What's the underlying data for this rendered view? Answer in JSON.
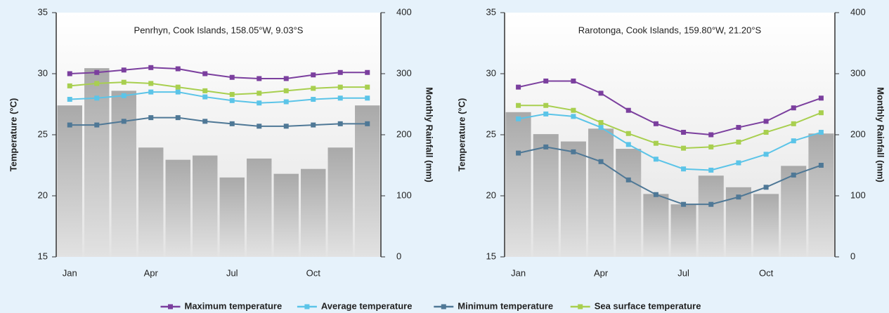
{
  "chart_data": [
    {
      "type": "combo",
      "title": "Penrhyn, Cook Islands, 158.05°W, 9.03°S",
      "ylabel": "Temperature (°C)",
      "y2label": "Monthly Rainfall (mm)",
      "categories": [
        "Jan",
        null,
        null,
        "Apr",
        null,
        null,
        "Jul",
        null,
        null,
        "Oct",
        null,
        null
      ],
      "ylim": [
        15,
        35
      ],
      "yticks": [
        15,
        20,
        25,
        30,
        35
      ],
      "y2lim": [
        0,
        400
      ],
      "y2ticks": [
        0,
        100,
        200,
        300,
        400
      ],
      "bars": {
        "axis": "y2",
        "values": [
          248,
          309,
          272,
          179,
          159,
          166,
          130,
          161,
          136,
          144,
          179,
          248
        ]
      },
      "series": [
        {
          "name": "Maximum temperature",
          "color": "#7b3f9e",
          "values": [
            30.0,
            30.1,
            30.3,
            30.5,
            30.4,
            30.0,
            29.7,
            29.6,
            29.6,
            29.9,
            30.1,
            30.1
          ]
        },
        {
          "name": "Average temperature",
          "color": "#5bc4e8",
          "values": [
            27.9,
            28.0,
            28.2,
            28.5,
            28.5,
            28.1,
            27.8,
            27.6,
            27.7,
            27.9,
            28.0,
            28.0
          ]
        },
        {
          "name": "Minimum temperature",
          "color": "#4f7896",
          "values": [
            25.8,
            25.8,
            26.1,
            26.4,
            26.4,
            26.1,
            25.9,
            25.7,
            25.7,
            25.8,
            25.9,
            25.9
          ]
        },
        {
          "name": "Sea surface temperature",
          "color": "#a8cf4f",
          "values": [
            29.0,
            29.2,
            29.3,
            29.2,
            28.9,
            28.6,
            28.3,
            28.4,
            28.6,
            28.8,
            28.9,
            28.9
          ]
        }
      ]
    },
    {
      "type": "combo",
      "title": "Rarotonga, Cook Islands, 159.80°W, 21.20°S",
      "ylabel": "Temperature (°C)",
      "y2label": "Monthly Rainfall (mm)",
      "categories": [
        "Jan",
        null,
        null,
        "Apr",
        null,
        null,
        "Jul",
        null,
        null,
        "Oct",
        null,
        null
      ],
      "ylim": [
        15,
        35
      ],
      "yticks": [
        15,
        20,
        25,
        30,
        35
      ],
      "y2lim": [
        0,
        400
      ],
      "y2ticks": [
        0,
        100,
        200,
        300,
        400
      ],
      "bars": {
        "axis": "y2",
        "values": [
          237,
          201,
          189,
          210,
          177,
          103,
          86,
          133,
          114,
          103,
          149,
          202
        ]
      },
      "series": [
        {
          "color": "#7b3f9e",
          "values": [
            28.9,
            29.4,
            29.4,
            28.4,
            27.0,
            25.9,
            25.2,
            25.0,
            25.6,
            26.1,
            27.2,
            28.0
          ]
        },
        {
          "color": "#5bc4e8",
          "values": [
            26.3,
            26.7,
            26.5,
            25.6,
            24.2,
            23.0,
            22.2,
            22.1,
            22.7,
            23.4,
            24.5,
            25.2
          ]
        },
        {
          "color": "#4f7896",
          "values": [
            23.5,
            24.0,
            23.6,
            22.8,
            21.3,
            20.1,
            19.3,
            19.3,
            19.9,
            20.7,
            21.7,
            22.5
          ]
        },
        {
          "color": "#a8cf4f",
          "values": [
            27.4,
            27.4,
            27.0,
            26.0,
            25.1,
            24.3,
            23.9,
            24.0,
            24.4,
            25.2,
            25.9,
            26.8
          ]
        }
      ]
    }
  ]
}
